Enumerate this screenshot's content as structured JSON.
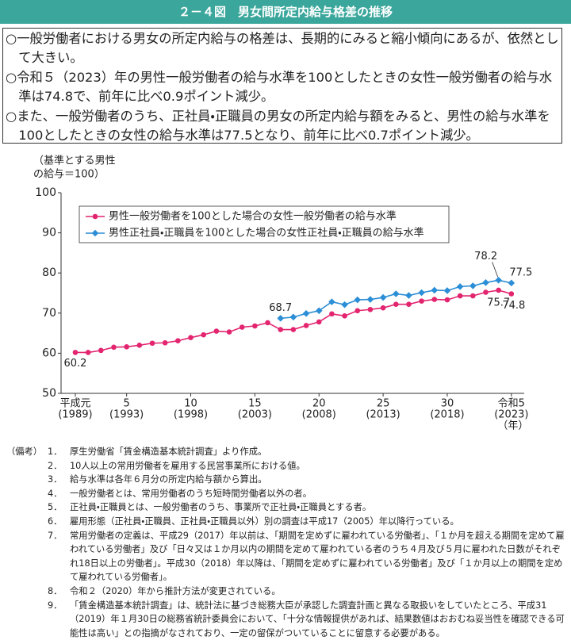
{
  "header": {
    "title": "２－４図　男女間所定内給与格差の推移"
  },
  "summary": [
    "○一般労働者における男女の所定内給与の格差は、長期的にみると縮小傾向にあるが、依然として大きい。",
    "○令和５（2023）年の男性一般労働者の給与水準を100としたときの女性一般労働者の給与水準は74.8で、前年に比べ0.9ポイント減少。",
    "○また、一般労働者のうち、正社員・正職員の男女の所定内給与額をみると、男性の給与水準を100としたときの女性の給与水準は77.5となり、前年に比べ0.7ポイント減少。"
  ],
  "chart_data": {
    "type": "line",
    "y_label": [
      "（基準とする男性",
      "の給与＝100）"
    ],
    "x_unit": "（年）",
    "x": [
      1989,
      1990,
      1991,
      1992,
      1993,
      1994,
      1995,
      1996,
      1997,
      1998,
      1999,
      2000,
      2001,
      2002,
      2003,
      2004,
      2005,
      2006,
      2007,
      2008,
      2009,
      2010,
      2011,
      2012,
      2013,
      2014,
      2015,
      2016,
      2017,
      2018,
      2019,
      2020,
      2021,
      2022,
      2023
    ],
    "xlim": [
      1988,
      2024
    ],
    "xticks": [
      {
        "value": 1989,
        "label": "平成元",
        "year_label": "(1989)"
      },
      {
        "value": 1993,
        "label": "5",
        "year_label": "(1993)"
      },
      {
        "value": 1998,
        "label": "10",
        "year_label": "(1998)"
      },
      {
        "value": 2003,
        "label": "15",
        "year_label": "(2003)"
      },
      {
        "value": 2008,
        "label": "20",
        "year_label": "(2008)"
      },
      {
        "value": 2013,
        "label": "25",
        "year_label": "(2013)"
      },
      {
        "value": 2018,
        "label": "30",
        "year_label": "(2018)"
      },
      {
        "value": 2023,
        "label": "令和5",
        "year_label": "(2023)"
      }
    ],
    "ylim": [
      50,
      100
    ],
    "yticks": [
      50,
      60,
      70,
      80,
      90,
      100
    ],
    "legend": "top-left",
    "series": [
      {
        "name": "男性一般労働者を100とした場合の女性一般労働者の給与水準",
        "color": "#e3246f",
        "marker": "circle",
        "values": [
          60.2,
          60.2,
          60.7,
          61.5,
          61.6,
          62.0,
          62.5,
          62.6,
          63.1,
          63.9,
          64.6,
          65.5,
          65.3,
          66.5,
          66.8,
          67.6,
          65.9,
          65.9,
          66.9,
          67.8,
          69.8,
          69.3,
          70.6,
          70.9,
          71.3,
          72.2,
          72.2,
          73.0,
          73.4,
          73.3,
          74.3,
          74.3,
          75.2,
          75.7,
          74.8
        ],
        "value_labels": [
          "60.2",
          null,
          null,
          null,
          null,
          null,
          null,
          null,
          null,
          null,
          null,
          null,
          null,
          null,
          null,
          null,
          null,
          null,
          null,
          null,
          null,
          null,
          null,
          null,
          null,
          null,
          null,
          null,
          null,
          null,
          null,
          null,
          null,
          "75.7",
          "74.8"
        ]
      },
      {
        "name": "男性正社員・正職員を100とした場合の女性正社員・正職員の給与水準",
        "color": "#2b8ed6",
        "marker": "diamond",
        "values": [
          null,
          null,
          null,
          null,
          null,
          null,
          null,
          null,
          null,
          null,
          null,
          null,
          null,
          null,
          null,
          null,
          68.7,
          69.0,
          69.9,
          70.6,
          72.8,
          72.1,
          73.3,
          73.4,
          73.9,
          74.8,
          74.4,
          75.1,
          75.7,
          75.6,
          76.6,
          76.8,
          77.6,
          78.2,
          77.5
        ],
        "value_labels": [
          null,
          null,
          null,
          null,
          null,
          null,
          null,
          null,
          null,
          null,
          null,
          null,
          null,
          null,
          null,
          null,
          "68.7",
          null,
          null,
          null,
          null,
          null,
          null,
          null,
          null,
          null,
          null,
          null,
          null,
          null,
          null,
          null,
          null,
          "78.2",
          "77.5"
        ]
      }
    ]
  },
  "notes": {
    "label": "（備考）",
    "items": [
      {
        "number": "1．",
        "text": "厚生労働省「賃金構造基本統計調査」より作成。"
      },
      {
        "number": "2．",
        "text": "10人以上の常用労働者を雇用する民営事業所における値。"
      },
      {
        "number": "3．",
        "text": "給与水準は各年６月分の所定内給与額から算出。"
      },
      {
        "number": "4．",
        "text": "一般労働者とは、常用労働者のうち短時間労働者以外の者。"
      },
      {
        "number": "5．",
        "text": "正社員・正職員とは、一般労働者のうち、事業所で正社員・正職員とする者。"
      },
      {
        "number": "6．",
        "text": "雇用形態（正社員・正職員、正社員・正職員以外）別の調査は平成17（2005）年以降行っている。"
      },
      {
        "number": "7．",
        "text": "常用労働者の定義は、平成29（2017）年以前は、「期間を定めずに雇われている労働者」、「１か月を超える期間を定めて雇われている労働者」及び「日々又は１か月以内の期間を定めて雇われている者のうち４月及び５月に雇われた日数がそれぞれ18日以上の労働者」。平成30（2018）年以降は、「期間を定めずに雇われている労働者」及び「１か月以上の期間を定めて雇われている労働者」。"
      },
      {
        "number": "8．",
        "text": "令和２（2020）年から推計方法が変更されている。"
      },
      {
        "number": "9．",
        "text": "「賃金構造基本統計調査」は、統計法に基づき総務大臣が承認した調査計画と異なる取扱いをしていたところ、平成31（2019）年１月30日の総務省統計委員会において、「十分な情報提供があれば、結果数値はおおむね妥当性を確認できる可能性は高い」との指摘がなされており、一定の留保がついていることに留意する必要がある。"
      }
    ]
  }
}
